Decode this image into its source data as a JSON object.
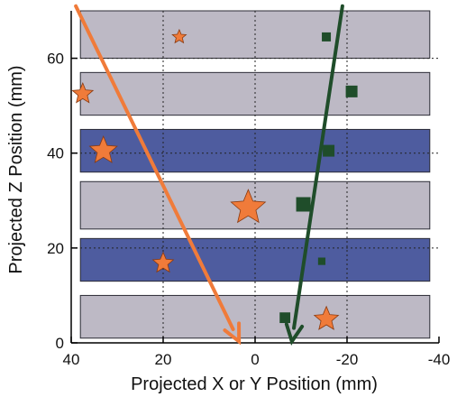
{
  "chart_data": {
    "type": "scatter",
    "xlabel": "Projected X or Y Position (mm)",
    "ylabel": "Projected Z Position (mm)",
    "xlim": [
      40,
      -40
    ],
    "ylim": [
      0,
      70
    ],
    "x_ticks": [
      40,
      20,
      0,
      -20,
      -40
    ],
    "y_ticks": [
      0,
      20,
      40,
      60
    ],
    "x_tick_labels": [
      "40",
      "20",
      "0",
      "-20",
      "-40"
    ],
    "y_tick_labels": [
      "0",
      "20",
      "40",
      "60"
    ],
    "grid": true,
    "x_axis_reversed": true,
    "bands": [
      {
        "y0": 1,
        "y1": 10,
        "style": "gray"
      },
      {
        "y0": 13,
        "y1": 22,
        "style": "blue"
      },
      {
        "y0": 24,
        "y1": 34,
        "style": "gray"
      },
      {
        "y0": 36,
        "y1": 45,
        "style": "blue"
      },
      {
        "y0": 48,
        "y1": 57,
        "style": "gray"
      },
      {
        "y0": 60,
        "y1": 70,
        "style": "gray"
      }
    ],
    "series": [
      {
        "marker": "star",
        "color": "#f07b3a",
        "points": [
          {
            "x": 16.5,
            "y": 64.5,
            "size": 1
          },
          {
            "x": 37.5,
            "y": 52.5,
            "size": 2
          },
          {
            "x": 33,
            "y": 40.5,
            "size": 3
          },
          {
            "x": 1.5,
            "y": 28.5,
            "size": 4
          },
          {
            "x": 20,
            "y": 16.8,
            "size": 2
          },
          {
            "x": -15.5,
            "y": 5,
            "size": 2.5
          }
        ],
        "arrow": {
          "from": [
            39,
            71
          ],
          "to": [
            3.5,
            0.3
          ]
        }
      },
      {
        "marker": "square",
        "color": "#1f4d2a",
        "points": [
          {
            "x": -15.5,
            "y": 64.5,
            "size": 1
          },
          {
            "x": -21,
            "y": 53,
            "size": 1.5
          },
          {
            "x": -16,
            "y": 40.5,
            "size": 1.5
          },
          {
            "x": -10.5,
            "y": 29.2,
            "size": 2
          },
          {
            "x": -14.5,
            "y": 17.2,
            "size": 0.7
          },
          {
            "x": -6.5,
            "y": 5.3,
            "size": 1.3
          }
        ],
        "arrow": {
          "from": [
            -19,
            71
          ],
          "to": [
            -8,
            0.3
          ]
        }
      }
    ]
  }
}
